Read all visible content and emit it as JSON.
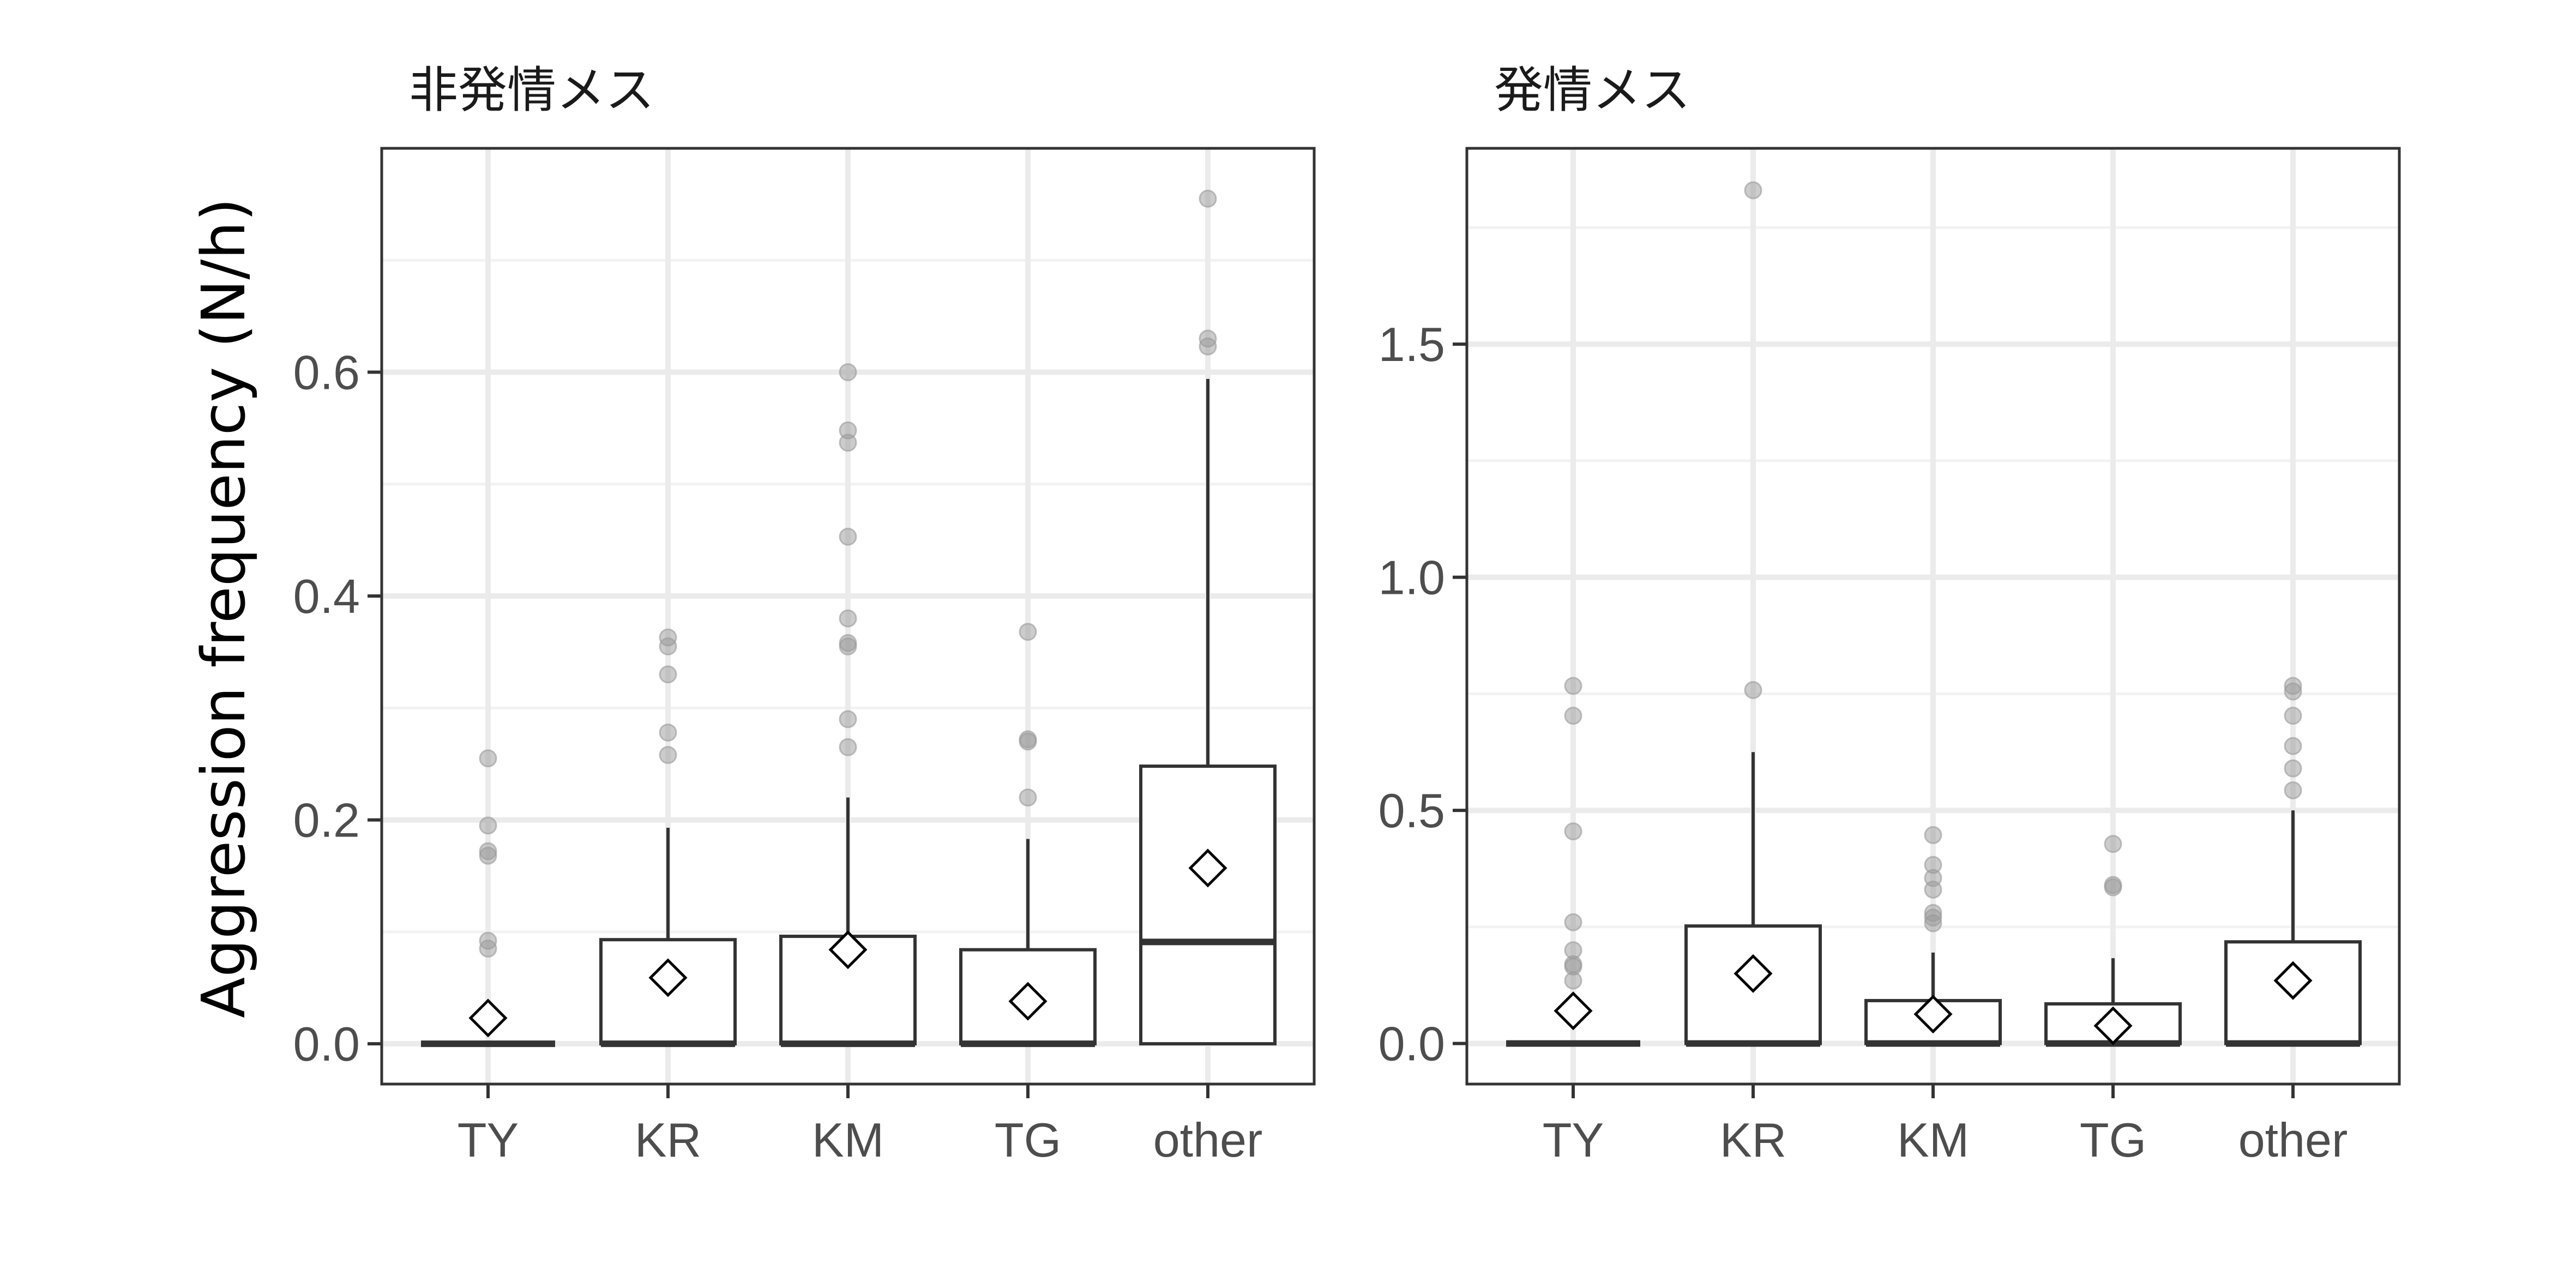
{
  "chart_data": [
    {
      "type": "box",
      "title": "非発情メス",
      "ylabel": "Aggression frequency (N/h)",
      "xlabel": "",
      "categories": [
        "TY",
        "KR",
        "KM",
        "TG",
        "other"
      ],
      "ylim": [
        -0.036,
        0.8
      ],
      "yticks": [
        0.0,
        0.2,
        0.4,
        0.6
      ],
      "ytick_labels": [
        "0.0",
        "0.2",
        "0.4",
        "0.6"
      ],
      "grid": true,
      "boxes": [
        {
          "category": "TY",
          "q1": 0.0,
          "median": 0.0,
          "q3": 0.0,
          "whisker_low": 0.0,
          "whisker_high": 0.0,
          "mean": 0.023,
          "outliers": [
            0.255,
            0.195,
            0.172,
            0.168,
            0.092,
            0.085
          ]
        },
        {
          "category": "KR",
          "q1": 0.0,
          "median": 0.0,
          "q3": 0.093,
          "whisker_low": 0.0,
          "whisker_high": 0.193,
          "mean": 0.059,
          "outliers": [
            0.363,
            0.355,
            0.33,
            0.278,
            0.258
          ]
        },
        {
          "category": "KM",
          "q1": 0.0,
          "median": 0.0,
          "q3": 0.096,
          "whisker_low": 0.0,
          "whisker_high": 0.22,
          "mean": 0.084,
          "outliers": [
            0.6,
            0.548,
            0.537,
            0.453,
            0.38,
            0.358,
            0.355,
            0.29,
            0.265
          ]
        },
        {
          "category": "TG",
          "q1": 0.0,
          "median": 0.0,
          "q3": 0.084,
          "whisker_low": 0.0,
          "whisker_high": 0.183,
          "mean": 0.038,
          "outliers": [
            0.368,
            0.272,
            0.27,
            0.22
          ]
        },
        {
          "category": "other",
          "q1": 0.0,
          "median": 0.091,
          "q3": 0.248,
          "whisker_low": 0.0,
          "whisker_high": 0.594,
          "mean": 0.157,
          "outliers": [
            0.755,
            0.63,
            0.623
          ]
        }
      ]
    },
    {
      "type": "box",
      "title": "発情メス",
      "ylabel": "",
      "xlabel": "",
      "categories": [
        "TY",
        "KR",
        "KM",
        "TG",
        "other"
      ],
      "ylim": [
        -0.087,
        1.92
      ],
      "yticks": [
        0.0,
        0.5,
        1.0,
        1.5
      ],
      "ytick_labels": [
        "0.0",
        "0.5",
        "1.0",
        "1.5"
      ],
      "grid": true,
      "boxes": [
        {
          "category": "TY",
          "q1": 0.0,
          "median": 0.0,
          "q3": 0.0,
          "whisker_low": 0.0,
          "whisker_high": 0.0,
          "mean": 0.07,
          "outliers": [
            0.767,
            0.703,
            0.455,
            0.26,
            0.2,
            0.17,
            0.165,
            0.135
          ]
        },
        {
          "category": "KR",
          "q1": 0.0,
          "median": 0.0,
          "q3": 0.252,
          "whisker_low": 0.0,
          "whisker_high": 0.625,
          "mean": 0.15,
          "outliers": [
            1.83,
            0.758
          ]
        },
        {
          "category": "KM",
          "q1": 0.0,
          "median": 0.0,
          "q3": 0.092,
          "whisker_low": 0.0,
          "whisker_high": 0.195,
          "mean": 0.063,
          "outliers": [
            0.447,
            0.383,
            0.355,
            0.33,
            0.28,
            0.27,
            0.258
          ]
        },
        {
          "category": "TG",
          "q1": 0.0,
          "median": 0.0,
          "q3": 0.085,
          "whisker_low": 0.0,
          "whisker_high": 0.183,
          "mean": 0.038,
          "outliers": [
            0.428,
            0.34,
            0.335
          ]
        },
        {
          "category": "other",
          "q1": 0.0,
          "median": 0.0,
          "q3": 0.218,
          "whisker_low": 0.0,
          "whisker_high": 0.5,
          "mean": 0.135,
          "outliers": [
            0.767,
            0.755,
            0.703,
            0.638,
            0.59,
            0.543
          ]
        }
      ]
    }
  ],
  "colors": {
    "box_line": "#333333",
    "box_fill": "#ffffff",
    "grid_major": "#ebebeb",
    "grid_minor": "#f2f2f2",
    "outlier": "#999999",
    "tick_text": "#4d4d4d",
    "axis_title": "#000000"
  }
}
